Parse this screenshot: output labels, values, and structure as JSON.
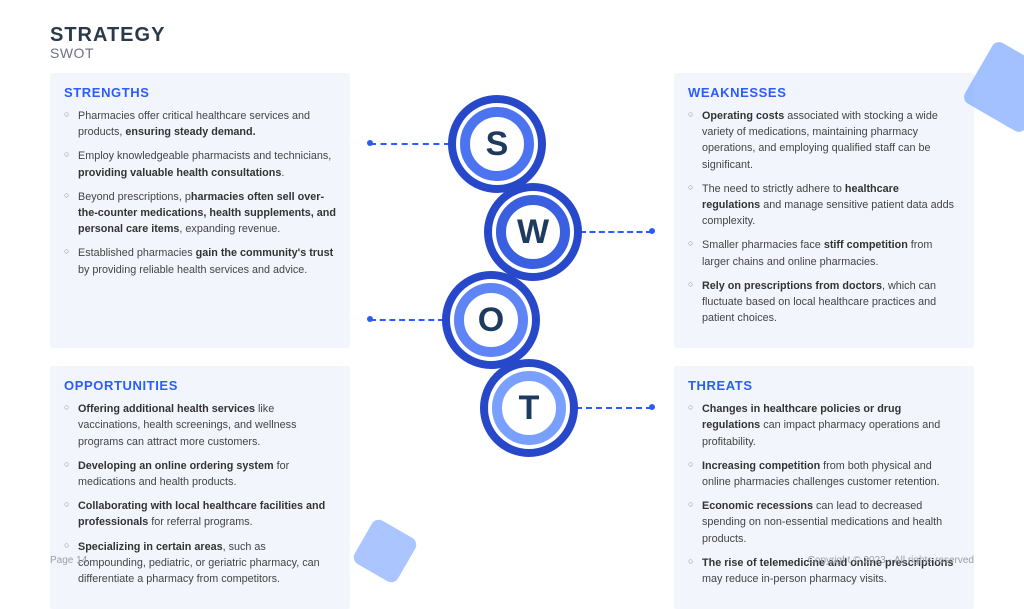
{
  "heading": {
    "title": "STRATEGY",
    "subtitle": "SWOT"
  },
  "panels": {
    "strengths": {
      "title": "STRENGTHS",
      "items": [
        "Pharmacies offer critical healthcare services and products, <b>ensuring steady demand.</b>",
        "Employ knowledgeable pharmacists and technicians, <b>providing valuable health consultations</b>.",
        "Beyond prescriptions, p<b>harmacies often sell over-the-counter medications, health supplements, and personal care items</b>, expanding revenue.",
        "Established pharmacies <b>gain the community's trust</b> by providing reliable health services and advice."
      ]
    },
    "weaknesses": {
      "title": "WEAKNESSES",
      "items": [
        "<b>Operating costs</b> associated with stocking a wide variety of medications, maintaining pharmacy operations, and employing qualified staff can be significant.",
        "The need to strictly adhere to <b>healthcare regulations</b> and manage sensitive patient data adds complexity.",
        "Smaller pharmacies face <b>stiff competition</b> from larger chains and online pharmacies.",
        "<b>Rely on prescriptions from doctors</b>, which can fluctuate based on local healthcare practices and patient choices."
      ]
    },
    "opportunities": {
      "title": "OPPORTUNITIES",
      "items": [
        "<b>Offering additional health services</b> like vaccinations, health screenings, and wellness programs can attract more customers.",
        "<b>Developing an online ordering system</b> for medications and health products.",
        "<b>Collaborating with local healthcare facilities and professionals</b> for referral programs.",
        "<b>Specializing in certain areas</b>, such as compounding, pediatric, or geriatric pharmacy, can differentiate a pharmacy from competitors."
      ]
    },
    "threats": {
      "title": "THREATS",
      "items": [
        "<b>Changes in healthcare policies or drug regulations</b> can impact pharmacy operations and profitability.",
        "<b>Increasing competition</b> from both physical and online pharmacies challenges customer retention.",
        "<b>Economic recessions</b> can lead to decreased spending on non-essential medications and health products.",
        "<b>The rise of telemedicine and online prescriptions</b> may reduce in-person pharmacy visits."
      ]
    }
  },
  "letters": {
    "s": "S",
    "w": "W",
    "o": "O",
    "t": "T"
  },
  "footer": {
    "page": "Page 14",
    "copyright": "Copyright © 2023 - All rights reserved"
  },
  "colors": {
    "accent": "#2b5cff",
    "panel_bg": "#f2f5fb",
    "text": "#444444",
    "letter": "#1e3a5f"
  }
}
